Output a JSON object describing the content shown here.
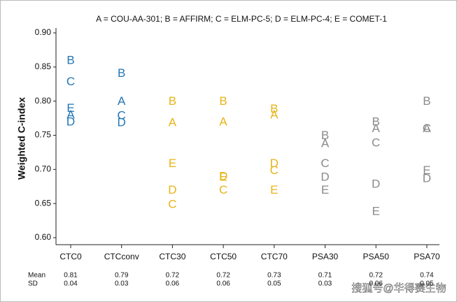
{
  "chart_data": {
    "type": "letter-scatter",
    "legend_text": "A = COU-AA-301;  B = AFFIRM;  C = ELM-PC-5;  D = ELM-PC-4;  E = COMET-1",
    "y_label": "Weighted C-index",
    "categories": [
      "CTC0",
      "CTCconv",
      "CTC30",
      "CTC50",
      "CTC70",
      "PSA30",
      "PSA50",
      "PSA70"
    ],
    "category_colors": [
      "#2276b5",
      "#2276b5",
      "#e8b418",
      "#e8b418",
      "#e8b418",
      "#8a8a8a",
      "#8a8a8a",
      "#8a8a8a"
    ],
    "series": [
      {
        "name": "A",
        "values": [
          0.779,
          0.799,
          0.768,
          0.769,
          0.779,
          0.737,
          0.759,
          0.759
        ]
      },
      {
        "name": "B",
        "values": [
          0.859,
          0.84,
          0.799,
          0.799,
          0.788,
          0.749,
          0.769,
          0.799
        ]
      },
      {
        "name": "C",
        "values": [
          0.828,
          0.778,
          0.648,
          0.669,
          0.698,
          0.708,
          0.738,
          0.759
        ]
      },
      {
        "name": "D",
        "values": [
          0.769,
          0.768,
          0.669,
          0.689,
          0.708,
          0.688,
          0.678,
          0.686
        ]
      },
      {
        "name": "E",
        "values": [
          0.789,
          null,
          0.708,
          0.688,
          0.669,
          0.669,
          0.638,
          0.698
        ]
      }
    ],
    "ylim": [
      0.6,
      0.9
    ],
    "yticks": [
      {
        "value": 0.6,
        "label": "0.60"
      },
      {
        "value": 0.65,
        "label": "0.65"
      },
      {
        "value": 0.7,
        "label": "0.70"
      },
      {
        "value": 0.75,
        "label": "0.75"
      },
      {
        "value": 0.8,
        "label": "0.80"
      },
      {
        "value": 0.85,
        "label": "0.85"
      },
      {
        "value": 0.9,
        "label": "0.90"
      }
    ],
    "stats": {
      "mean_label": "Mean",
      "sd_label": "SD",
      "mean": [
        0.81,
        0.79,
        0.72,
        0.72,
        0.73,
        0.71,
        0.72,
        0.74
      ],
      "sd": [
        0.04,
        0.03,
        0.06,
        0.06,
        0.05,
        0.03,
        0.06,
        0.05
      ]
    },
    "watermark": "搜狐号@华得赛生物"
  }
}
